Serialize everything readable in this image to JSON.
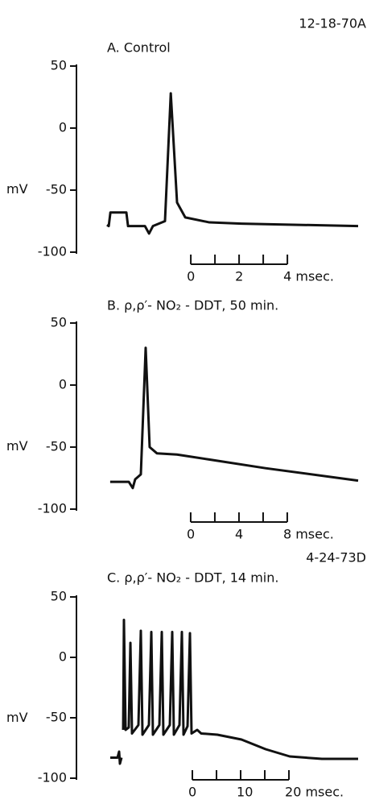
{
  "chart_data": [
    {
      "type": "line",
      "annotation": "12-18-70A",
      "title": "A. Control",
      "ylabel": "mV",
      "xlim": [
        -3.47,
        6.93
      ],
      "ylim": [
        -100,
        50
      ],
      "yticks": [
        50,
        0,
        -50,
        -100
      ],
      "xticks": [
        0,
        2,
        {
          "value": 4,
          "label": "4 msec."
        }
      ],
      "x_minor_ticks": [
        1,
        3
      ],
      "color": "#111111",
      "x": [
        -3.47,
        -3.4,
        -3.33,
        -2.67,
        -2.6,
        -1.9,
        -1.73,
        -1.57,
        -1.07,
        -0.83,
        -0.57,
        -0.23,
        0.77,
        2.1,
        6.93
      ],
      "values": [
        -78,
        -79,
        -68,
        -68,
        -79,
        -79,
        -85,
        -79,
        -75,
        28,
        -60,
        -72,
        -76,
        -77,
        -79
      ]
    },
    {
      "type": "line",
      "title": "B. ρ,ρ′- NO₂ - DDT, 50 min.",
      "ylabel": "mV",
      "xlim": [
        -6.93,
        13.87
      ],
      "ylim": [
        -100,
        50
      ],
      "yticks": [
        50,
        0,
        -50,
        -100
      ],
      "xticks": [
        0,
        4,
        {
          "value": 8,
          "label": "8 msec."
        }
      ],
      "x_minor_ticks": [
        2,
        6
      ],
      "color": "#111111",
      "x": [
        -6.67,
        -5.13,
        -4.8,
        -4.6,
        -4.13,
        -3.73,
        -3.4,
        -2.8,
        -1.13,
        1.53,
        6.2,
        13.87
      ],
      "values": [
        -78,
        -78,
        -83,
        -76,
        -72,
        30,
        -50,
        -55,
        -56,
        -60,
        -67,
        -77
      ]
    },
    {
      "type": "line",
      "annotation": "4-24-73D",
      "title": "C. ρ,ρ′- NO₂ - DDT, 14 min.",
      "ylabel": "mV",
      "xlim": [
        -17.67,
        34.33
      ],
      "ylim": [
        -100,
        50
      ],
      "yticks": [
        50,
        0,
        -50,
        -100
      ],
      "xticks": [
        0,
        10,
        {
          "value": 20,
          "label": "20 msec."
        }
      ],
      "x_minor_ticks": [
        5,
        15
      ],
      "color": "#111111",
      "x": [
        -17,
        -15.5,
        -15.17,
        -15,
        -14.67,
        null,
        -14.33,
        -14.17,
        -13.83,
        -13.17,
        -12.83,
        -12.5,
        -11.17,
        -10.67,
        -10.33,
        -9,
        -8.5,
        -8.17,
        -6.83,
        -6.33,
        -6,
        -4.67,
        -4.17,
        -3.83,
        -2.67,
        -2.17,
        -1.83,
        -1,
        -0.5,
        -0.17,
        1,
        1.83,
        5.17,
        10.17,
        15.17,
        20.17,
        26.83,
        34.33
      ],
      "values": [
        -83,
        -83,
        -78,
        -88,
        -83,
        null,
        -60,
        31,
        -60,
        -58,
        12,
        -63,
        -56,
        22,
        -64,
        -56,
        21,
        -64,
        -56,
        21,
        -64,
        -56,
        21,
        -64,
        -56,
        21,
        -64,
        -57,
        20,
        -63,
        -60,
        -63,
        -64,
        -68,
        -76,
        -82,
        -84,
        -84
      ]
    }
  ]
}
